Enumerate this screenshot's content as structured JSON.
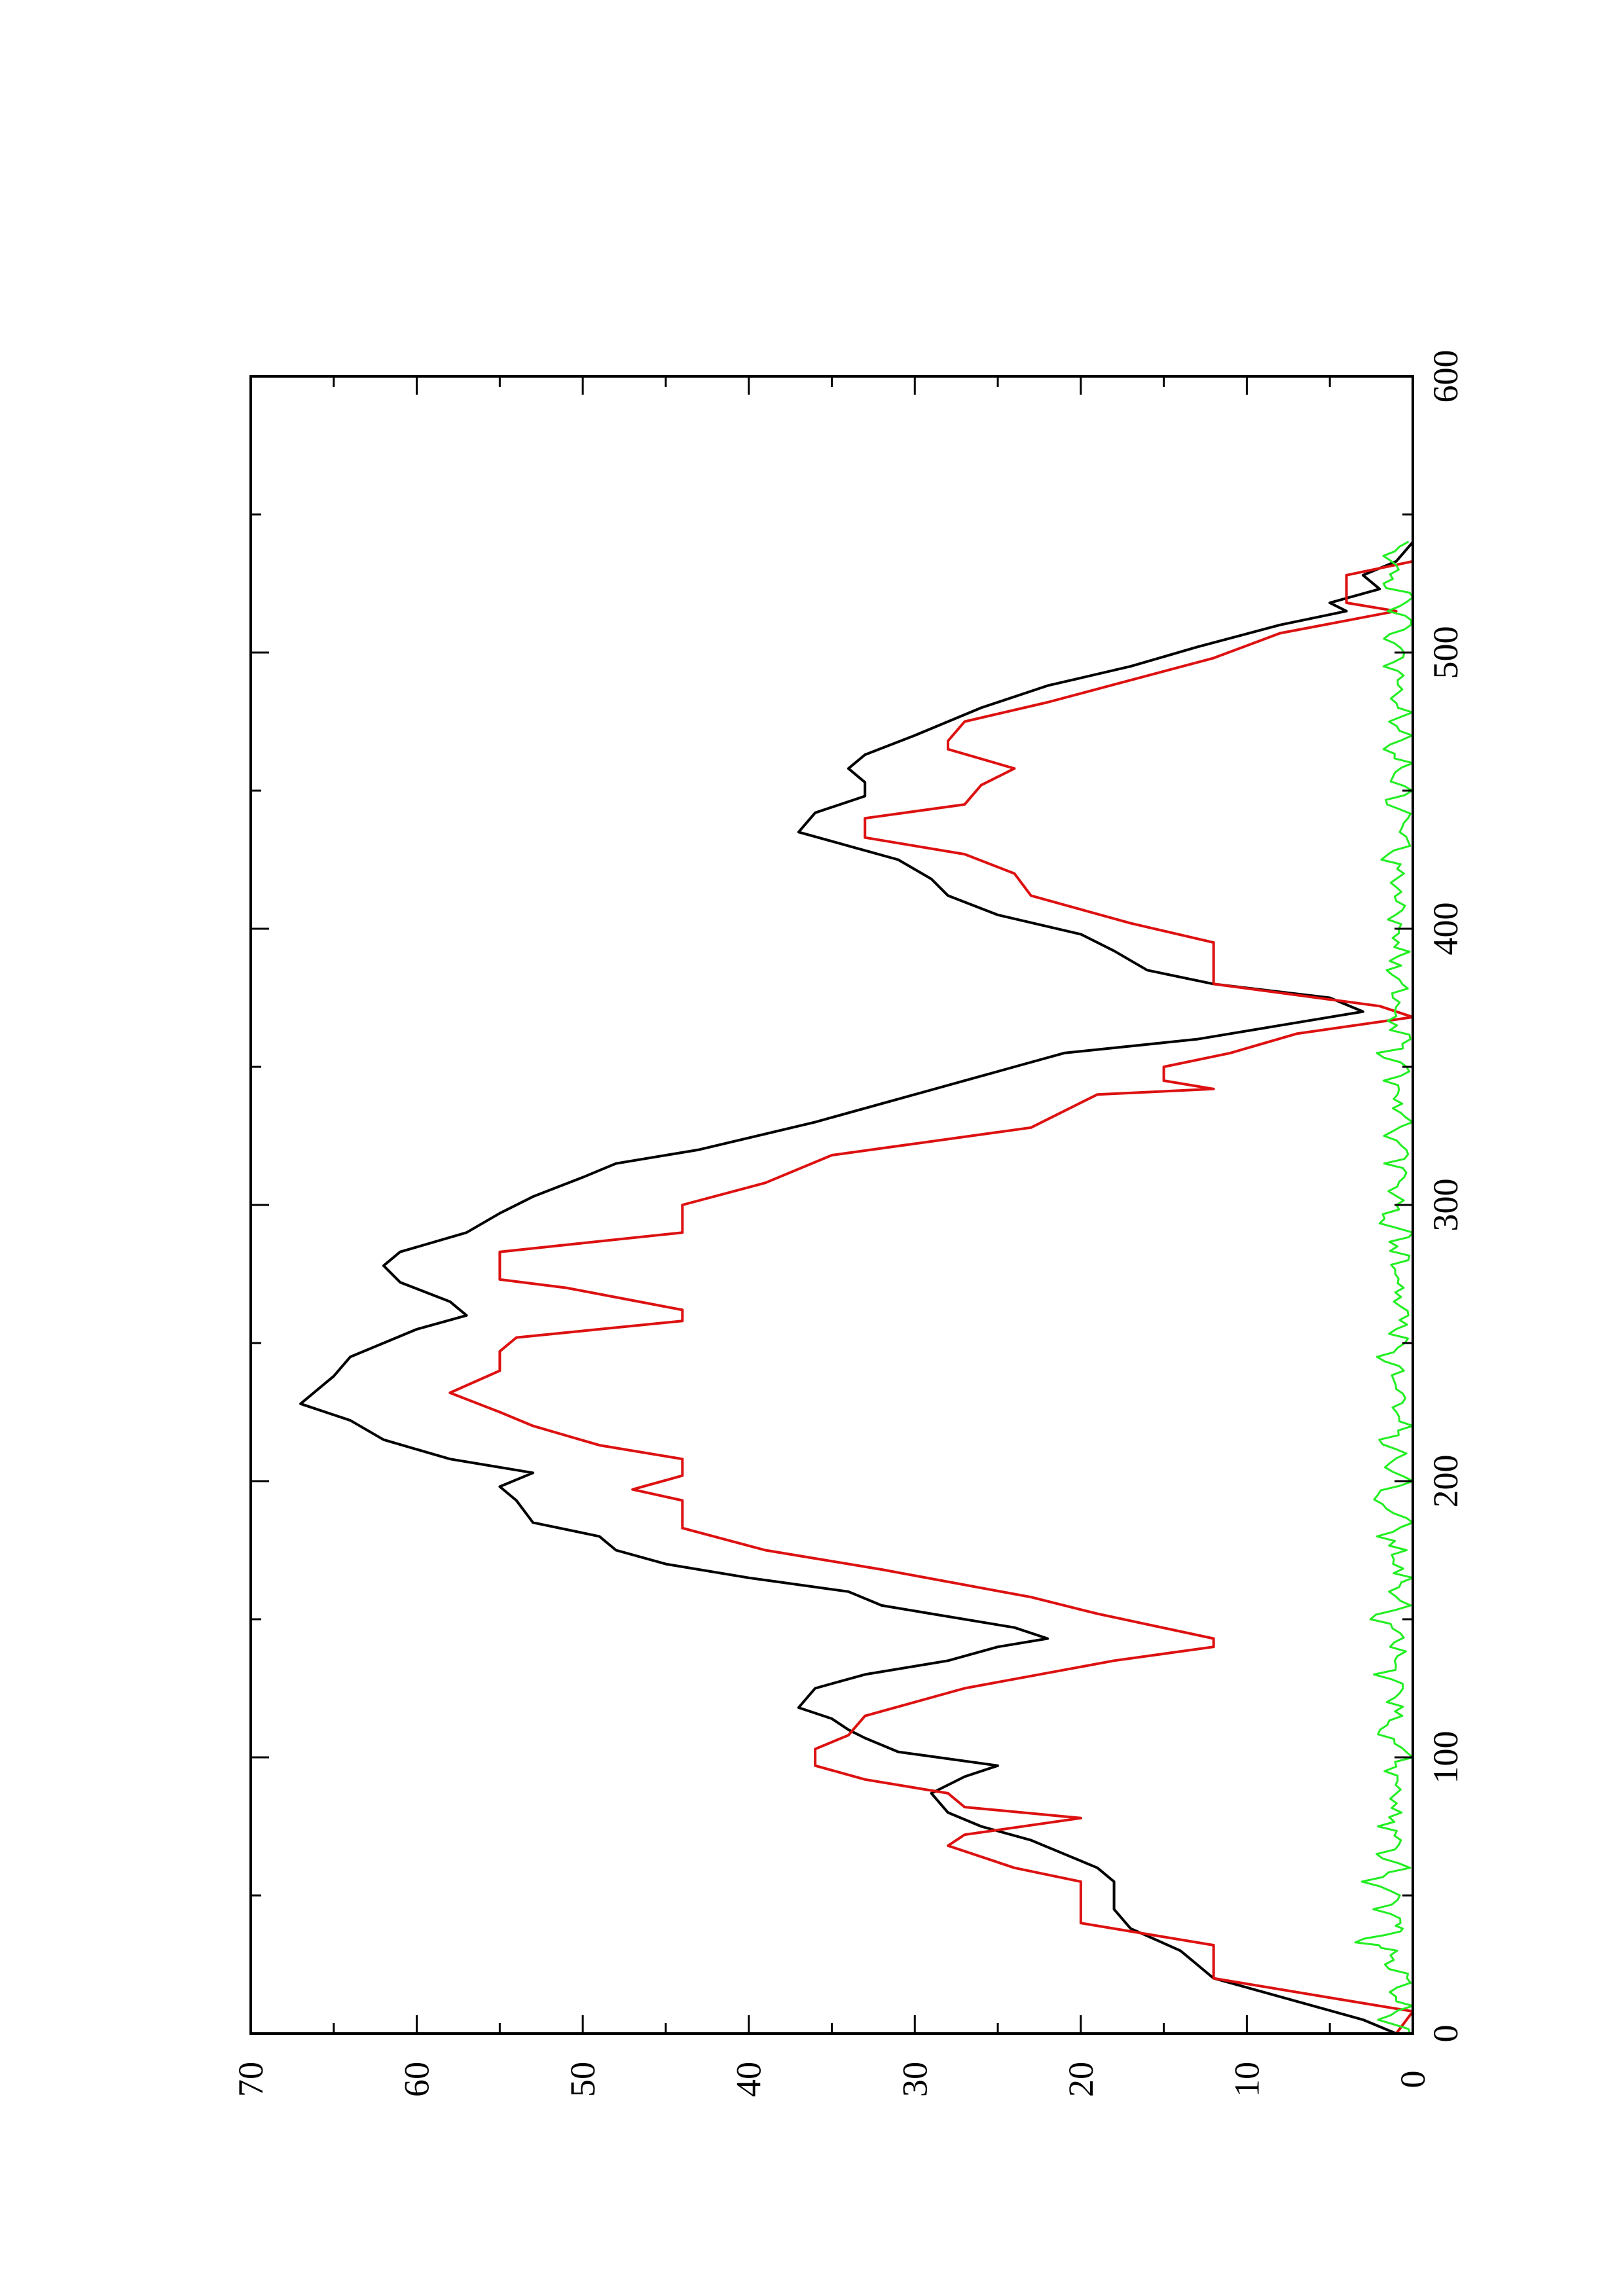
{
  "chart_data": {
    "type": "line",
    "orientation": "rotated-90-ccw",
    "title": "",
    "xlabel": "",
    "ylabel": "",
    "xlim": [
      0,
      600
    ],
    "ylim": [
      0,
      70
    ],
    "x_ticks": [
      0,
      100,
      200,
      300,
      400,
      500,
      600
    ],
    "y_ticks": [
      0,
      10,
      20,
      30,
      40,
      50,
      60,
      70
    ],
    "grid": false,
    "legend": "none",
    "series": [
      {
        "color": "#000000",
        "style": "line",
        "points": [
          [
            0,
            1
          ],
          [
            5,
            3
          ],
          [
            10,
            6
          ],
          [
            15,
            9
          ],
          [
            20,
            12
          ],
          [
            25,
            13
          ],
          [
            30,
            14
          ],
          [
            38,
            17
          ],
          [
            45,
            18
          ],
          [
            55,
            18
          ],
          [
            60,
            19
          ],
          [
            65,
            21
          ],
          [
            70,
            23
          ],
          [
            75,
            26
          ],
          [
            80,
            28
          ],
          [
            87,
            29
          ],
          [
            93,
            27
          ],
          [
            97,
            25
          ],
          [
            102,
            31
          ],
          [
            107,
            33
          ],
          [
            110,
            34
          ],
          [
            114,
            35
          ],
          [
            118,
            37
          ],
          [
            125,
            36
          ],
          [
            130,
            33
          ],
          [
            135,
            28
          ],
          [
            140,
            25
          ],
          [
            143,
            22
          ],
          [
            147,
            24
          ],
          [
            152,
            29
          ],
          [
            155,
            32
          ],
          [
            160,
            34
          ],
          [
            165,
            40
          ],
          [
            170,
            45
          ],
          [
            175,
            48
          ],
          [
            180,
            49
          ],
          [
            185,
            53
          ],
          [
            193,
            54
          ],
          [
            198,
            55
          ],
          [
            203,
            53
          ],
          [
            208,
            58
          ],
          [
            215,
            62
          ],
          [
            222,
            64
          ],
          [
            228,
            67
          ],
          [
            233,
            66
          ],
          [
            238,
            65
          ],
          [
            245,
            64
          ],
          [
            250,
            62
          ],
          [
            255,
            60
          ],
          [
            260,
            57
          ],
          [
            265,
            58
          ],
          [
            272,
            61
          ],
          [
            278,
            62
          ],
          [
            283,
            61
          ],
          [
            290,
            57
          ],
          [
            297,
            55
          ],
          [
            303,
            53
          ],
          [
            310,
            50
          ],
          [
            315,
            48
          ],
          [
            320,
            43
          ],
          [
            330,
            36
          ],
          [
            340,
            30
          ],
          [
            345,
            27
          ],
          [
            350,
            24
          ],
          [
            355,
            21
          ],
          [
            360,
            13
          ],
          [
            365,
            8
          ],
          [
            370,
            3
          ],
          [
            375,
            5
          ],
          [
            380,
            12
          ],
          [
            385,
            16
          ],
          [
            392,
            18
          ],
          [
            398,
            20
          ],
          [
            405,
            25
          ],
          [
            412,
            28
          ],
          [
            418,
            29
          ],
          [
            425,
            31
          ],
          [
            430,
            34
          ],
          [
            435,
            37
          ],
          [
            442,
            36
          ],
          [
            448,
            33
          ],
          [
            453,
            33
          ],
          [
            458,
            34
          ],
          [
            463,
            33
          ],
          [
            470,
            30
          ],
          [
            475,
            28
          ],
          [
            480,
            26
          ],
          [
            488,
            22
          ],
          [
            495,
            17
          ],
          [
            502,
            13
          ],
          [
            510,
            8
          ],
          [
            515,
            4
          ],
          [
            518,
            5
          ],
          [
            523,
            2
          ],
          [
            528,
            3
          ],
          [
            533,
            1
          ],
          [
            540,
            0
          ]
        ]
      },
      {
        "color": "#dd1111",
        "style": "step",
        "points": [
          [
            0,
            1
          ],
          [
            8,
            0
          ],
          [
            12,
            4
          ],
          [
            20,
            12
          ],
          [
            32,
            12
          ],
          [
            40,
            20
          ],
          [
            55,
            20
          ],
          [
            60,
            24
          ],
          [
            68,
            28
          ],
          [
            72,
            27
          ],
          [
            78,
            20
          ],
          [
            82,
            27
          ],
          [
            87,
            28
          ],
          [
            92,
            33
          ],
          [
            97,
            36
          ],
          [
            103,
            36
          ],
          [
            108,
            34
          ],
          [
            115,
            33
          ],
          [
            125,
            27
          ],
          [
            135,
            18
          ],
          [
            140,
            12
          ],
          [
            143,
            12
          ],
          [
            152,
            19
          ],
          [
            158,
            23
          ],
          [
            168,
            32
          ],
          [
            175,
            39
          ],
          [
            183,
            44
          ],
          [
            193,
            44
          ],
          [
            197,
            47
          ],
          [
            202,
            44
          ],
          [
            208,
            44
          ],
          [
            213,
            49
          ],
          [
            220,
            53
          ],
          [
            225,
            55
          ],
          [
            232,
            58
          ],
          [
            240,
            55
          ],
          [
            247,
            55
          ],
          [
            252,
            54
          ],
          [
            258,
            44
          ],
          [
            262,
            44
          ],
          [
            270,
            51
          ],
          [
            273,
            55
          ],
          [
            283,
            55
          ],
          [
            290,
            44
          ],
          [
            300,
            44
          ],
          [
            308,
            39
          ],
          [
            318,
            35
          ],
          [
            328,
            23
          ],
          [
            340,
            19
          ],
          [
            342,
            12
          ],
          [
            345,
            15
          ],
          [
            350,
            15
          ],
          [
            355,
            11
          ],
          [
            362,
            7
          ],
          [
            368,
            0
          ],
          [
            372,
            2
          ],
          [
            380,
            12
          ],
          [
            395,
            12
          ],
          [
            402,
            17
          ],
          [
            412,
            23
          ],
          [
            420,
            24
          ],
          [
            427,
            27
          ],
          [
            433,
            33
          ],
          [
            440,
            33
          ],
          [
            445,
            27
          ],
          [
            452,
            26
          ],
          [
            458,
            24
          ],
          [
            465,
            28
          ],
          [
            468,
            28
          ],
          [
            475,
            27
          ],
          [
            482,
            22
          ],
          [
            490,
            17
          ],
          [
            498,
            12
          ],
          [
            507,
            8
          ],
          [
            515,
            1
          ],
          [
            518,
            4
          ],
          [
            528,
            4
          ],
          [
            533,
            0
          ]
        ]
      },
      {
        "color": "#22ee22",
        "style": "noise",
        "amplitude": 2.5,
        "points": [
          [
            0,
            0
          ],
          [
            5,
            1.5
          ],
          [
            10,
            0.3
          ],
          [
            15,
            1
          ],
          [
            20,
            0
          ],
          [
            25,
            2
          ],
          [
            30,
            0.5
          ],
          [
            33,
            3.5
          ],
          [
            37,
            1
          ],
          [
            40,
            0.3
          ],
          [
            45,
            2
          ],
          [
            50,
            1
          ],
          [
            55,
            2.5
          ],
          [
            60,
            0.5
          ],
          [
            65,
            1.8
          ],
          [
            70,
            0.3
          ],
          [
            75,
            2
          ],
          [
            80,
            0.8
          ],
          [
            85,
            1.5
          ],
          [
            90,
            0.5
          ],
          [
            95,
            2
          ],
          [
            100,
            0.3
          ],
          [
            105,
            1.2
          ],
          [
            110,
            2
          ],
          [
            115,
            0.5
          ],
          [
            120,
            1.5
          ],
          [
            125,
            0.4
          ],
          [
            130,
            1.8
          ],
          [
            135,
            0.6
          ],
          [
            140,
            1.2
          ],
          [
            145,
            0.4
          ],
          [
            150,
            2.2
          ],
          [
            155,
            0.5
          ],
          [
            160,
            1
          ],
          [
            165,
            0.2
          ],
          [
            170,
            1.5
          ],
          [
            175,
            0.6
          ],
          [
            180,
            1.8
          ],
          [
            185,
            0.3
          ],
          [
            190,
            1.2
          ],
          [
            195,
            2
          ],
          [
            200,
            0.5
          ],
          [
            205,
            1.5
          ],
          [
            210,
            0.4
          ],
          [
            215,
            1.8
          ],
          [
            220,
            0.3
          ],
          [
            225,
            1.2
          ],
          [
            230,
            0.6
          ],
          [
            235,
            1.5
          ],
          [
            240,
            0.3
          ],
          [
            245,
            1.8
          ],
          [
            250,
            0.5
          ],
          [
            255,
            1.2
          ],
          [
            260,
            0.4
          ],
          [
            265,
            1.6
          ],
          [
            270,
            0.3
          ],
          [
            275,
            1.4
          ],
          [
            280,
            0.5
          ],
          [
            285,
            1.1
          ],
          [
            290,
            0.3
          ],
          [
            295,
            2
          ],
          [
            300,
            0.6
          ],
          [
            305,
            1.2
          ],
          [
            310,
            0.3
          ],
          [
            315,
            1.4
          ],
          [
            320,
            0.4
          ],
          [
            325,
            1.5
          ],
          [
            330,
            0.2
          ],
          [
            335,
            1.1
          ],
          [
            340,
            0.4
          ],
          [
            345,
            1.3
          ],
          [
            350,
            0.5
          ],
          [
            355,
            1.6
          ],
          [
            360,
            0.3
          ],
          [
            365,
            1.2
          ],
          [
            370,
            0.5
          ],
          [
            375,
            1
          ],
          [
            380,
            0.3
          ],
          [
            385,
            1.5
          ],
          [
            390,
            0.6
          ],
          [
            395,
            1.1
          ],
          [
            400,
            0.3
          ],
          [
            405,
            1.4
          ],
          [
            410,
            0.5
          ],
          [
            415,
            1.2
          ],
          [
            420,
            0.3
          ],
          [
            425,
            1.5
          ],
          [
            430,
            0.5
          ],
          [
            435,
            1.1
          ],
          [
            440,
            0.3
          ],
          [
            445,
            1.4
          ],
          [
            450,
            0.6
          ],
          [
            455,
            1.2
          ],
          [
            460,
            0.3
          ],
          [
            465,
            1.6
          ],
          [
            470,
            0.5
          ],
          [
            475,
            1.1
          ],
          [
            480,
            0.3
          ],
          [
            485,
            1.3
          ],
          [
            490,
            0.4
          ],
          [
            495,
            1.2
          ],
          [
            500,
            0.3
          ],
          [
            505,
            1.5
          ],
          [
            510,
            0.4
          ],
          [
            515,
            1.1
          ],
          [
            520,
            0.3
          ],
          [
            525,
            1.4
          ],
          [
            530,
            0.5
          ],
          [
            535,
            1.2
          ],
          [
            540,
            0.3
          ]
        ]
      }
    ]
  }
}
